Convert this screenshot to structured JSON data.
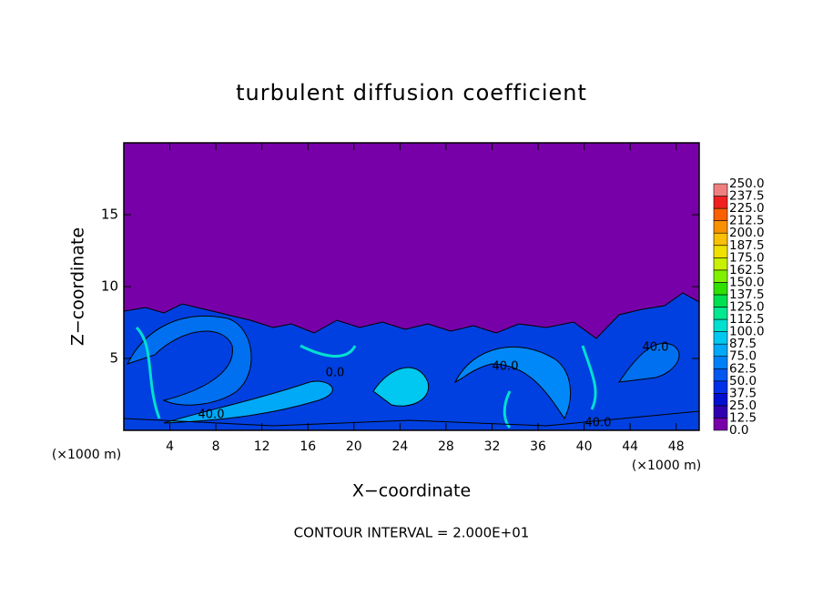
{
  "chart_data": {
    "type": "contour",
    "title": "turbulent diffusion coefficient",
    "xlabel": "X−coordinate",
    "ylabel": "Z−coordinate",
    "x_unit_label": "(×1000 m)",
    "xlim": [
      0,
      50
    ],
    "ylim": [
      0,
      20
    ],
    "xticks": [
      4,
      8,
      12,
      16,
      20,
      24,
      28,
      32,
      36,
      40,
      44,
      48
    ],
    "yticks": [
      5,
      10,
      15
    ],
    "colorbar": {
      "levels": [
        {
          "value": 0,
          "label": "0.0"
        },
        12.5,
        {
          "value": 25,
          "label": "25.0"
        },
        37.5,
        {
          "value": 50,
          "label": "50.0"
        },
        62.5,
        {
          "value": 75,
          "label": "75.0"
        },
        87.5,
        {
          "value": 100,
          "label": "100.0"
        },
        112.5,
        {
          "value": 125,
          "label": "125.0"
        },
        137.5,
        {
          "value": 150,
          "label": "150.0"
        },
        162.5,
        {
          "value": 175,
          "label": "175.0"
        },
        187.5,
        {
          "value": 200,
          "label": "200.0"
        },
        212.5,
        {
          "value": 225,
          "label": "225.0"
        },
        237.5,
        {
          "value": 250,
          "label": "250.0"
        }
      ],
      "colors": [
        "#7800a8",
        "#3000b0",
        "#0010d0",
        "#0030e8",
        "#0058f0",
        "#0080f8",
        "#00a8f8",
        "#00c8f0",
        "#00e0d0",
        "#00e890",
        "#00e050",
        "#30e000",
        "#80f000",
        "#c8f000",
        "#f0e000",
        "#f8c000",
        "#f89000",
        "#f86000",
        "#f02020",
        "#f08080"
      ]
    },
    "contour_labels": [
      "40.0",
      "40.0",
      "40.0",
      "40.0",
      "0.0"
    ],
    "annotation": "CONTOUR INTERVAL = 2.000E+01"
  }
}
